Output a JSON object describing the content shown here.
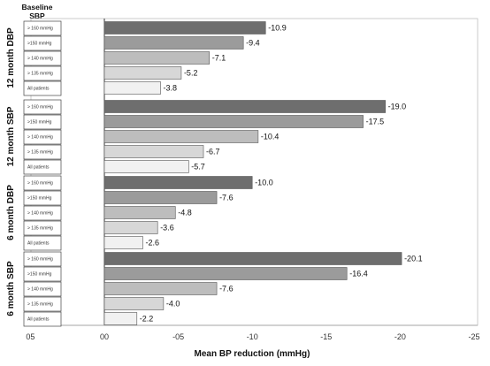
{
  "chart_data": {
    "type": "bar",
    "orientation": "horizontal",
    "header_label_line1": "Baseline",
    "header_label_line2": "SBP",
    "xlabel": "Mean BP reduction (mmHg)",
    "xlim": [
      5,
      -25
    ],
    "x_ticks": [
      {
        "value": 5,
        "label": "05"
      },
      {
        "value": 0,
        "label": "00"
      },
      {
        "value": -5,
        "label": "-05"
      },
      {
        "value": -10,
        "label": "-10"
      },
      {
        "value": -15,
        "label": "-15"
      },
      {
        "value": -20,
        "label": "-20"
      },
      {
        "value": -25,
        "label": "-25"
      }
    ],
    "categories": [
      "> 160 mmHg",
      ">150 mmHg",
      "> 140 mmHg",
      "> 135 mmHg",
      "All patients"
    ],
    "bar_colors": [
      "#6e6e6e",
      "#9b9b9b",
      "#bdbdbd",
      "#d7d7d7",
      "#f1f1f1"
    ],
    "groups": [
      {
        "name": "12 month DBP",
        "values": [
          -10.9,
          -9.4,
          -7.1,
          -5.2,
          -3.8
        ],
        "labels": [
          "-10.9",
          "-9.4",
          "-7.1",
          "-5.2",
          "-3.8"
        ]
      },
      {
        "name": "12 month SBP",
        "values": [
          -19.0,
          -17.5,
          -10.4,
          -6.7,
          -5.7
        ],
        "labels": [
          "-19.0",
          "-17.5",
          "-10.4",
          "-6.7",
          "-5.7"
        ]
      },
      {
        "name": "6 month DBP",
        "values": [
          -10.0,
          -7.6,
          -4.8,
          -3.6,
          -2.6
        ],
        "labels": [
          "-10.0",
          "-7.6",
          "-4.8",
          "-3.6",
          "-2.6"
        ]
      },
      {
        "name": "6 month SBP",
        "values": [
          -20.1,
          -16.4,
          -7.6,
          -4.0,
          -2.2
        ],
        "labels": [
          "-20.1",
          "-16.4",
          "-7.6",
          "-4.0",
          "-2.2"
        ]
      }
    ]
  }
}
